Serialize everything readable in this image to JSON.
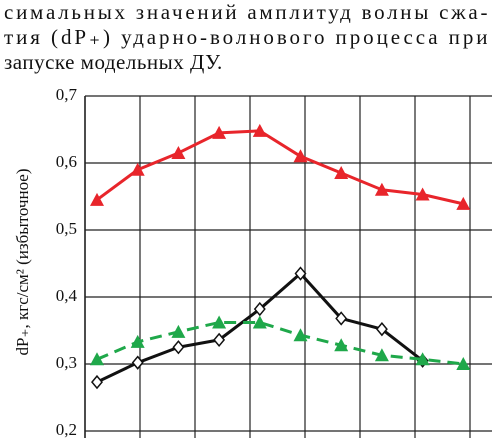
{
  "text": {
    "lines": [
      "симальных значений амплитуд волны сжа-",
      "тия (dP₊) ударно-волнового процесса при",
      "запуске модельных ДУ."
    ]
  },
  "chart_data": {
    "type": "line",
    "y_label": "dP₊, кгс/см² (избыточное)",
    "categories": [
      null,
      null,
      null,
      null,
      null,
      null,
      null,
      null,
      null,
      null
    ],
    "ylim": [
      0.2,
      0.7
    ],
    "yticks": [
      {
        "value": 0.2,
        "label": "0,2"
      },
      {
        "value": 0.3,
        "label": "0,3"
      },
      {
        "value": 0.4,
        "label": "0,4"
      },
      {
        "value": 0.5,
        "label": "0,5"
      },
      {
        "value": 0.6,
        "label": "0,6"
      },
      {
        "value": 0.7,
        "label": "0,7"
      }
    ],
    "grid": true,
    "series": [
      {
        "color": "#e8252b",
        "marker": "triangle",
        "dashed": false,
        "values": [
          0.545,
          0.59,
          0.615,
          0.645,
          0.648,
          0.61,
          0.585,
          0.56,
          0.553,
          0.539
        ]
      },
      {
        "color": "#111111",
        "marker": "diamond",
        "dashed": false,
        "values": [
          0.273,
          0.302,
          0.325,
          0.336,
          0.382,
          0.435,
          0.368,
          0.352,
          0.305,
          null
        ]
      },
      {
        "color": "#1fa84a",
        "marker": "triangle",
        "dashed": true,
        "values": [
          0.307,
          0.333,
          0.348,
          0.362,
          0.362,
          0.343,
          0.328,
          0.313,
          0.307,
          0.3
        ]
      }
    ]
  }
}
